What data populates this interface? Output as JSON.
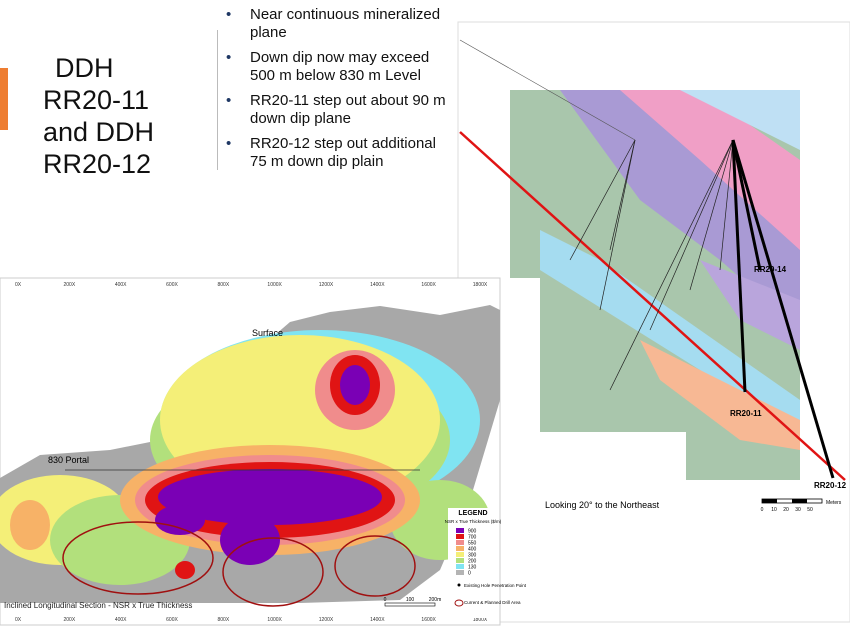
{
  "slide": {
    "title": "DDH RR20-11 and DDH RR20-12",
    "bullets": [
      "Near continuous mineralized plane",
      "Down dip now may exceed 500 m below 830 m Level",
      "RR20-11 step out about 90 m down dip plane",
      "RR20-12 step out additional 75 m down dip plain"
    ]
  },
  "long_section": {
    "caption": "Inclined Longitudinal Section - NSR x True Thickness",
    "surface": "Surface",
    "portal": "830 Portal",
    "x_axis": [
      "0X",
      "200X",
      "400X",
      "600X",
      "800X",
      "1000X",
      "1200X",
      "1400X",
      "1600X",
      "1800X"
    ],
    "legend": {
      "title": "LEGEND",
      "subtitle": "NSR x True Thickness ($/m)",
      "classes": [
        {
          "label": "900",
          "color": "#7a00b5"
        },
        {
          "label": "700",
          "color": "#e01414"
        },
        {
          "label": "550",
          "color": "#f08c8c"
        },
        {
          "label": "400",
          "color": "#f7b267"
        },
        {
          "label": "300",
          "color": "#f4ef78"
        },
        {
          "label": "200",
          "color": "#b2e07c"
        },
        {
          "label": "130",
          "color": "#80e4f2"
        },
        {
          "label": "0",
          "color": "#b4b4b4"
        }
      ],
      "hole": "Existing Hole Penetration Point",
      "drill_area": "Current & Planned Drill Area"
    },
    "scale": [
      "0",
      "100",
      "200m"
    ]
  },
  "cross_section": {
    "holes": [
      "RR20-14",
      "RR20-11",
      "RR20-12"
    ],
    "caption": "Looking 20° to the Northeast",
    "scale": [
      "0",
      "10",
      "20",
      "30",
      "50"
    ],
    "scale_unit": "Meters"
  }
}
